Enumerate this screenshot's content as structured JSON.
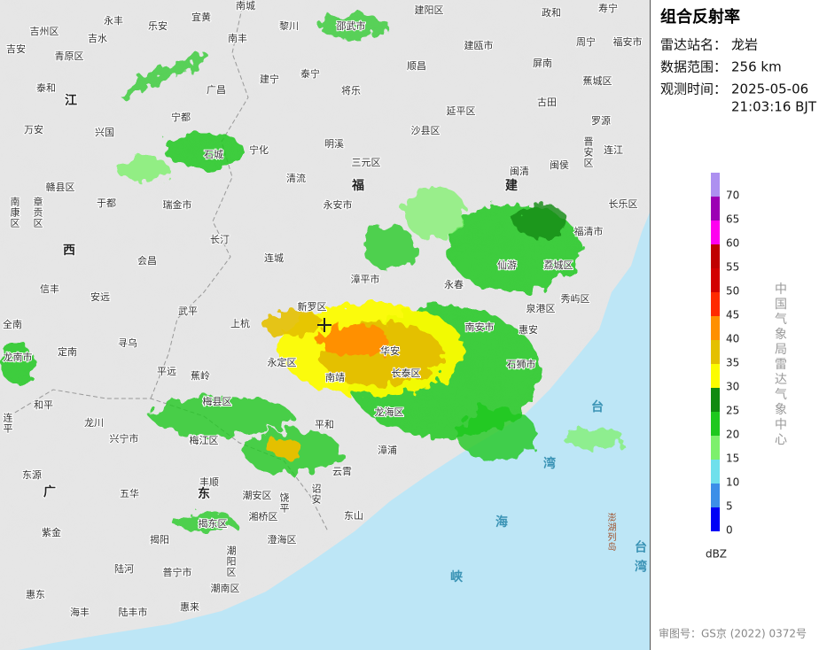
{
  "panel": {
    "title": "组合反射率",
    "station_label": "雷达站名：",
    "station": "龙岩",
    "range_label": "数据范围：",
    "range": "256 km",
    "time_label": "观测时间：",
    "date": "2025-05-06",
    "time": "21:03:16 BJT",
    "agency": "中国气象局雷达气象中心",
    "approval": "审图号：GS京 (2022) 0372号",
    "legend": {
      "unit": "dBZ",
      "ticks": [
        0,
        5,
        10,
        15,
        20,
        25,
        30,
        35,
        40,
        45,
        50,
        55,
        60,
        65,
        70
      ],
      "colors": [
        "#0000f6",
        "#3c8fe8",
        "#6fe0ec",
        "#7df06c",
        "#1ec81e",
        "#118a11",
        "#fcfc00",
        "#e4c000",
        "#ff9000",
        "#ff2a00",
        "#d20000",
        "#c00000",
        "#ff00f0",
        "#9c00b4",
        "#ad90f0"
      ]
    }
  },
  "map": {
    "places": [
      "吉州区",
      "永丰",
      "乐安",
      "宜黄",
      "南城",
      "黎川",
      "邵武市",
      "建阳区",
      "政和",
      "寿宁",
      "吉安",
      "青原区",
      "吉水",
      "南丰",
      "建瓯市",
      "周宁",
      "福安市",
      "泰和",
      "广昌",
      "建宁",
      "泰宁",
      "顺昌",
      "屏南",
      "蕉城区",
      "江",
      "将乐",
      "延平区",
      "古田",
      "万安",
      "兴国",
      "宁都",
      "沙县区",
      "罗源",
      "石城",
      "宁化",
      "明溪",
      "三元区",
      "闽清",
      "闽侯",
      "晋安区",
      "连江",
      "赣县区",
      "清流",
      "福",
      "建",
      "南康区",
      "章贡区",
      "于都",
      "瑞金市",
      "永安市",
      "长乐区",
      "西",
      "长汀",
      "福清市",
      "连城",
      "会昌",
      "漳平市",
      "永春",
      "仙游",
      "荔城区",
      "信丰",
      "安远",
      "武平",
      "新罗区",
      "上杭",
      "泉港区",
      "秀屿区",
      "全南",
      "寻乌",
      "南安市",
      "惠安",
      "华安",
      "定南",
      "龙南市",
      "平远",
      "蕉岭",
      "永定区",
      "南靖",
      "长泰区",
      "石狮市",
      "和平",
      "梅县区",
      "龙海区",
      "台",
      "连平",
      "龙川",
      "兴宁市",
      "梅江区",
      "平和",
      "漳浦",
      "东源",
      "丰顺",
      "潮安区",
      "饶平",
      "诏安",
      "云霄",
      "湾",
      "广",
      "五华",
      "东",
      "湘桥区",
      "东山",
      "海",
      "紫金",
      "揭东区",
      "澄海区",
      "澎湖列岛",
      "台湾",
      "揭阳",
      "潮阳区",
      "峡",
      "陆河",
      "普宁市",
      "惠东",
      "潮南区",
      "海丰",
      "陆丰市",
      "惠来"
    ]
  }
}
